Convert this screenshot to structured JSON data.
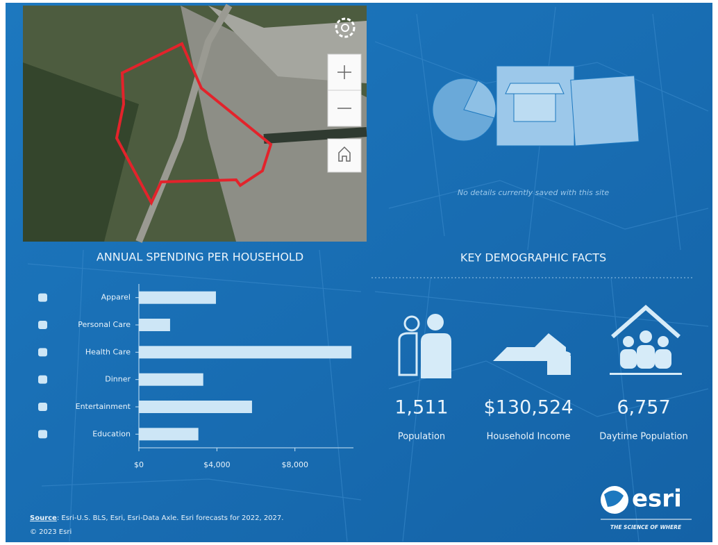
{
  "map": {
    "note": "No details currently saved with this site"
  },
  "chart_data": {
    "type": "bar",
    "orientation": "horizontal",
    "title": "ANNUAL SPENDING PER HOUSEHOLD",
    "categories": [
      "Apparel",
      "Personal Care",
      "Health Care",
      "Dinner",
      "Entertainment",
      "Education"
    ],
    "values": [
      3950,
      1600,
      10900,
      3300,
      5800,
      3050
    ],
    "color": "#cde6f6",
    "xlim": [
      0,
      11000
    ],
    "xticks": [
      {
        "value": 0,
        "label": "$0"
      },
      {
        "value": 4000,
        "label": "$4,000"
      },
      {
        "value": 8000,
        "label": "$8,000"
      }
    ]
  },
  "facts": {
    "title": "KEY DEMOGRAPHIC FACTS",
    "items": [
      {
        "value": "1,511",
        "label": "Population"
      },
      {
        "value": "$130,524",
        "label": "Household Income"
      },
      {
        "value": "6,757",
        "label": "Daytime Population"
      }
    ]
  },
  "footer": {
    "source_label": "Source",
    "source": ": Esri-U.S. BLS, Esri, Esri-Data Axle. Esri forecasts for 2022, 2027.",
    "copyright": "© 2023 Esri"
  },
  "logo": {
    "name": "esri",
    "tagline": "THE SCIENCE OF WHERE"
  }
}
